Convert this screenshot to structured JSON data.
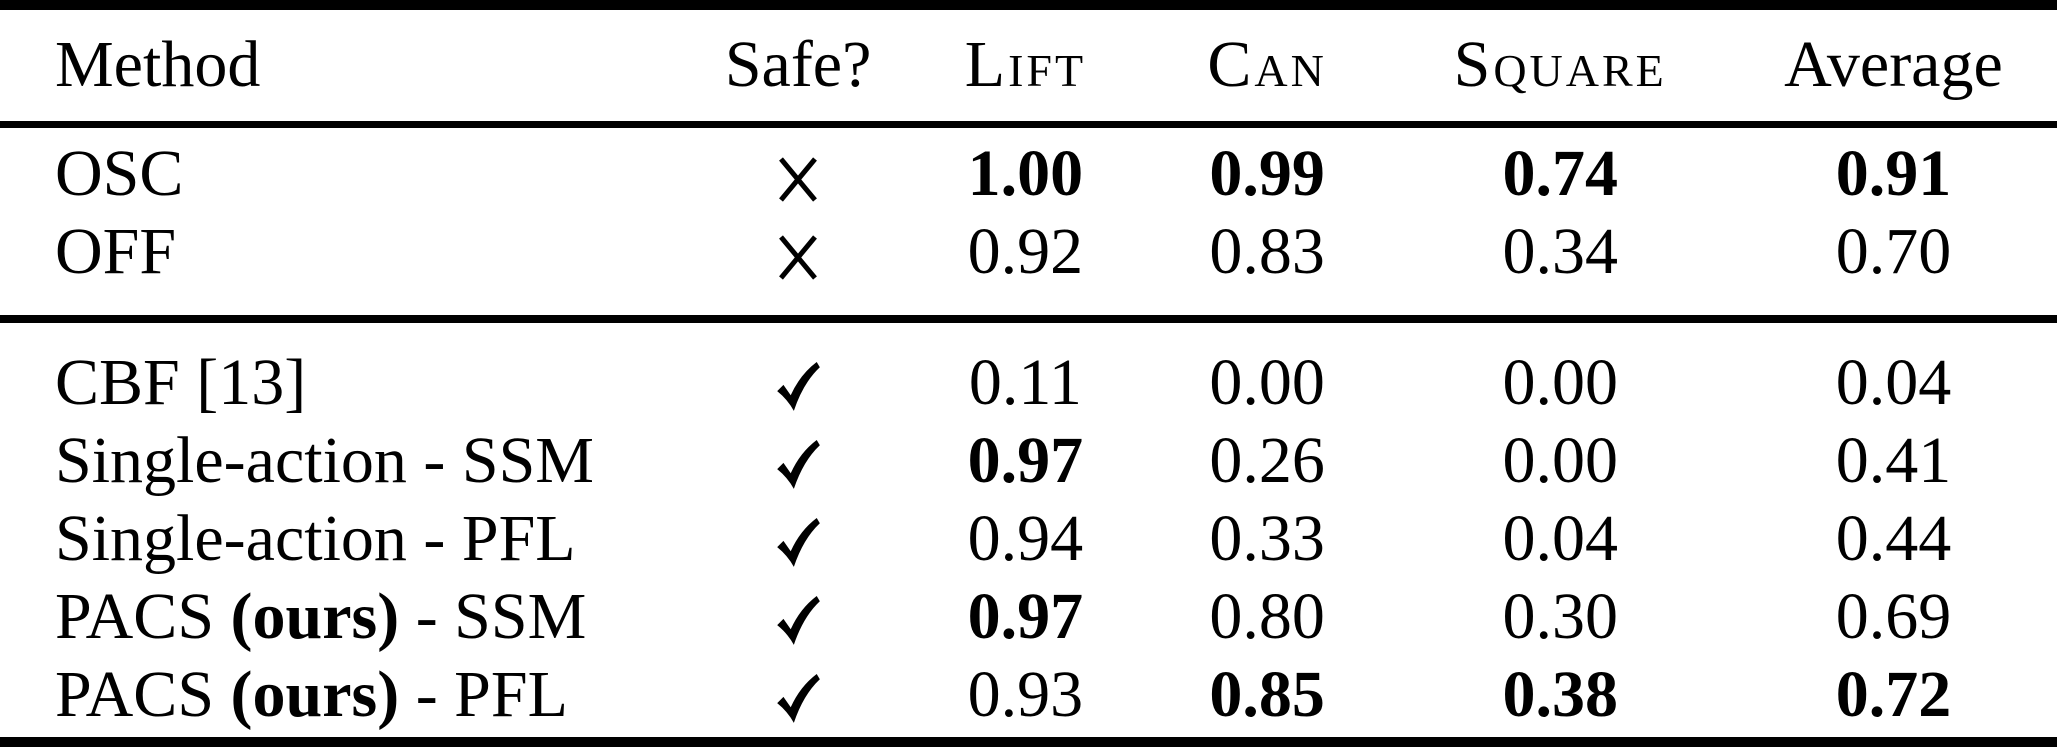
{
  "table": {
    "columns": [
      {
        "label": "Method",
        "smallcaps": false,
        "align": "left"
      },
      {
        "label": "Safe?",
        "smallcaps": false,
        "align": "center"
      },
      {
        "label": "Lift",
        "smallcaps": true,
        "align": "center"
      },
      {
        "label": "Can",
        "smallcaps": true,
        "align": "center"
      },
      {
        "label": "Square",
        "smallcaps": true,
        "align": "center"
      },
      {
        "label": "Average",
        "smallcaps": false,
        "align": "center"
      }
    ],
    "icons": {
      "safe": {
        "name": "check-icon",
        "glyph": "✓"
      },
      "unsafe": {
        "name": "cross-icon",
        "glyph": "✗"
      }
    },
    "groups": [
      {
        "rows": [
          {
            "method": [
              {
                "text": "OSC",
                "bold": false
              }
            ],
            "safe": false,
            "scores": [
              {
                "value": "1.00",
                "bold": true
              },
              {
                "value": "0.99",
                "bold": true
              },
              {
                "value": "0.74",
                "bold": true
              },
              {
                "value": "0.91",
                "bold": true
              }
            ]
          },
          {
            "method": [
              {
                "text": "OFF",
                "bold": false
              }
            ],
            "safe": false,
            "scores": [
              {
                "value": "0.92",
                "bold": false
              },
              {
                "value": "0.83",
                "bold": false
              },
              {
                "value": "0.34",
                "bold": false
              },
              {
                "value": "0.70",
                "bold": false
              }
            ]
          }
        ]
      },
      {
        "rows": [
          {
            "method": [
              {
                "text": "CBF [13]",
                "bold": false
              }
            ],
            "safe": true,
            "scores": [
              {
                "value": "0.11",
                "bold": false
              },
              {
                "value": "0.00",
                "bold": false
              },
              {
                "value": "0.00",
                "bold": false
              },
              {
                "value": "0.04",
                "bold": false
              }
            ]
          },
          {
            "method": [
              {
                "text": "Single-action - SSM",
                "bold": false
              }
            ],
            "safe": true,
            "scores": [
              {
                "value": "0.97",
                "bold": true
              },
              {
                "value": "0.26",
                "bold": false
              },
              {
                "value": "0.00",
                "bold": false
              },
              {
                "value": "0.41",
                "bold": false
              }
            ]
          },
          {
            "method": [
              {
                "text": "Single-action - PFL",
                "bold": false
              }
            ],
            "safe": true,
            "scores": [
              {
                "value": "0.94",
                "bold": false
              },
              {
                "value": "0.33",
                "bold": false
              },
              {
                "value": "0.04",
                "bold": false
              },
              {
                "value": "0.44",
                "bold": false
              }
            ]
          },
          {
            "method": [
              {
                "text": "PACS ",
                "bold": false
              },
              {
                "text": "(ours)",
                "bold": true
              },
              {
                "text": " - SSM",
                "bold": false
              }
            ],
            "safe": true,
            "scores": [
              {
                "value": "0.97",
                "bold": true
              },
              {
                "value": "0.80",
                "bold": false
              },
              {
                "value": "0.30",
                "bold": false
              },
              {
                "value": "0.69",
                "bold": false
              }
            ]
          },
          {
            "method": [
              {
                "text": "PACS ",
                "bold": false
              },
              {
                "text": "(ours)",
                "bold": true
              },
              {
                "text": " - PFL",
                "bold": false
              }
            ],
            "safe": true,
            "scores": [
              {
                "value": "0.93",
                "bold": false
              },
              {
                "value": "0.85",
                "bold": true
              },
              {
                "value": "0.38",
                "bold": true
              },
              {
                "value": "0.72",
                "bold": true
              }
            ]
          }
        ]
      }
    ]
  },
  "chart_data": {
    "type": "table",
    "title": "",
    "columns": [
      "Method",
      "Safe?",
      "Lift",
      "Can",
      "Square",
      "Average"
    ],
    "rows": [
      [
        "OSC",
        "✗",
        1.0,
        0.99,
        0.74,
        0.91
      ],
      [
        "OFF",
        "✗",
        0.92,
        0.83,
        0.34,
        0.7
      ],
      [
        "CBF [13]",
        "✓",
        0.11,
        0.0,
        0.0,
        0.04
      ],
      [
        "Single-action - SSM",
        "✓",
        0.97,
        0.26,
        0.0,
        0.41
      ],
      [
        "Single-action - PFL",
        "✓",
        0.94,
        0.33,
        0.04,
        0.44
      ],
      [
        "PACS (ours) - SSM",
        "✓",
        0.97,
        0.8,
        0.3,
        0.69
      ],
      [
        "PACS (ours) - PFL",
        "✓",
        0.93,
        0.85,
        0.38,
        0.72
      ]
    ]
  }
}
